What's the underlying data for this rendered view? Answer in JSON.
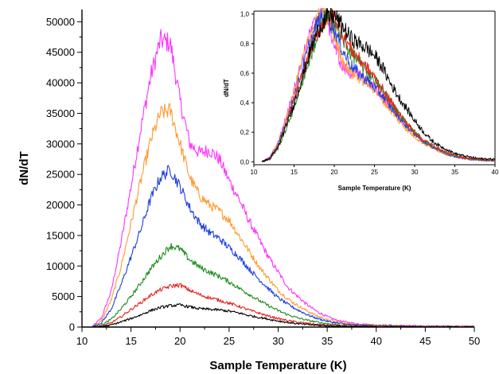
{
  "chart_data": [
    {
      "type": "line",
      "title": "",
      "xlabel": "Sample Temperature (K)",
      "ylabel": "dN/dT",
      "xlim": [
        10,
        50
      ],
      "ylim": [
        0,
        52000
      ],
      "xticks": [
        10,
        15,
        20,
        25,
        30,
        35,
        40,
        45,
        50
      ],
      "yticks": [
        0,
        5000,
        10000,
        15000,
        20000,
        25000,
        30000,
        35000,
        40000,
        45000,
        50000
      ],
      "grid": false,
      "legend": "none",
      "series": [
        {
          "color": "#ff33ff",
          "x": [
            11,
            12,
            13,
            14,
            15,
            16,
            17,
            18,
            19,
            20,
            21,
            22,
            23,
            24,
            25,
            26,
            27,
            28,
            29,
            30,
            31,
            32,
            33,
            34,
            35,
            36,
            37,
            38,
            40,
            42,
            45,
            50
          ],
          "y": [
            0,
            1500,
            6000,
            14000,
            23000,
            32500,
            41000,
            47000,
            46500,
            37000,
            30000,
            28500,
            29000,
            27500,
            24000,
            21000,
            17500,
            14500,
            11500,
            9000,
            6500,
            5000,
            3600,
            2500,
            1700,
            1100,
            800,
            550,
            350,
            250,
            150,
            100
          ]
        },
        {
          "color": "#ff9a33",
          "x": [
            11,
            12,
            13,
            14,
            15,
            16,
            17,
            18,
            19,
            20,
            21,
            22,
            23,
            24,
            25,
            26,
            27,
            28,
            29,
            30,
            31,
            32,
            33,
            34,
            35,
            36,
            37,
            38,
            40,
            42,
            45,
            50
          ],
          "y": [
            0,
            1000,
            4500,
            10000,
            17000,
            24000,
            30500,
            35000,
            35500,
            30000,
            24500,
            21500,
            20000,
            19000,
            17500,
            15000,
            12500,
            10000,
            8000,
            6000,
            4600,
            3500,
            2600,
            1800,
            1200,
            850,
            600,
            420,
            280,
            200,
            130,
            80
          ]
        },
        {
          "color": "#1f3fe0",
          "x": [
            11,
            12,
            13,
            14,
            15,
            16,
            17,
            18,
            19,
            20,
            21,
            22,
            23,
            24,
            25,
            26,
            27,
            28,
            29,
            30,
            31,
            32,
            33,
            34,
            35,
            36,
            37,
            38,
            40,
            42,
            45,
            50
          ],
          "y": [
            0,
            700,
            3000,
            7000,
            11500,
            16000,
            21000,
            24500,
            25800,
            23000,
            19500,
            17000,
            15500,
            14500,
            13000,
            11500,
            9600,
            7900,
            6300,
            4800,
            3700,
            2800,
            2000,
            1400,
            950,
            650,
            450,
            320,
            220,
            160,
            100,
            60
          ]
        },
        {
          "color": "#1a8a1a",
          "x": [
            11,
            12,
            13,
            14,
            15,
            16,
            17,
            18,
            19,
            20,
            21,
            22,
            23,
            24,
            25,
            26,
            27,
            28,
            29,
            30,
            31,
            32,
            33,
            34,
            35,
            36,
            37,
            38,
            40,
            42,
            45,
            50
          ],
          "y": [
            0,
            300,
            1300,
            3000,
            5000,
            7200,
            9500,
            11500,
            13300,
            12800,
            11000,
            9800,
            9000,
            8300,
            7400,
            6400,
            5400,
            4400,
            3500,
            2700,
            2000,
            1500,
            1100,
            800,
            550,
            400,
            280,
            200,
            140,
            100,
            60,
            40
          ]
        },
        {
          "color": "#e8221a",
          "x": [
            11,
            12,
            13,
            14,
            15,
            16,
            17,
            18,
            19,
            20,
            21,
            22,
            23,
            24,
            25,
            26,
            27,
            28,
            29,
            30,
            31,
            32,
            33,
            34,
            35,
            36,
            37,
            38,
            40,
            42,
            45,
            50
          ],
          "y": [
            0,
            150,
            700,
            1700,
            2900,
            4000,
            5200,
            6100,
            6700,
            6900,
            6000,
            5300,
            4800,
            4400,
            3900,
            3400,
            2800,
            2300,
            1800,
            1400,
            1050,
            800,
            600,
            420,
            300,
            220,
            160,
            120,
            80,
            60,
            40,
            30
          ]
        },
        {
          "color": "#000000",
          "x": [
            11,
            12,
            13,
            14,
            15,
            16,
            17,
            18,
            19,
            20,
            21,
            22,
            23,
            24,
            25,
            26,
            27,
            28,
            29,
            30,
            31,
            32,
            33,
            34,
            35,
            36,
            37,
            38,
            40,
            42,
            45,
            50
          ],
          "y": [
            0,
            80,
            350,
            850,
            1400,
            2000,
            2700,
            3200,
            3500,
            3600,
            3300,
            3000,
            2900,
            2800,
            2600,
            2300,
            1900,
            1600,
            1300,
            1000,
            750,
            550,
            400,
            300,
            200,
            150,
            110,
            80,
            60,
            40,
            30,
            20
          ]
        }
      ]
    },
    {
      "type": "line",
      "title": "",
      "xlabel": "Sample Temperature (K)",
      "ylabel": "dN/dT",
      "xlim": [
        10,
        40
      ],
      "ylim": [
        -0.02,
        1.02
      ],
      "xticks": [
        10,
        15,
        20,
        25,
        30,
        35,
        40
      ],
      "xtick_labels": [
        "10",
        "15",
        "20",
        "25",
        "30",
        "35",
        "40"
      ],
      "yticks": [
        0.0,
        0.2,
        0.4,
        0.6,
        0.8,
        1.0
      ],
      "ytick_labels": [
        "0,0",
        "0,2",
        "0,4",
        "0,6",
        "0,8",
        "1,0"
      ],
      "grid": false,
      "legend": "none",
      "series": [
        {
          "color": "#ff33ff",
          "x": [
            11,
            12,
            13,
            14,
            15,
            16,
            17,
            18,
            19,
            20,
            21,
            22,
            23,
            24,
            25,
            26,
            27,
            28,
            29,
            30,
            31,
            32,
            33,
            34,
            35,
            36,
            37,
            38,
            40
          ],
          "y": [
            0,
            0.03,
            0.13,
            0.3,
            0.49,
            0.69,
            0.87,
            0.99,
            0.99,
            0.79,
            0.64,
            0.6,
            0.6,
            0.55,
            0.5,
            0.44,
            0.37,
            0.3,
            0.24,
            0.19,
            0.14,
            0.11,
            0.08,
            0.055,
            0.037,
            0.024,
            0.017,
            0.012,
            0.007
          ]
        },
        {
          "color": "#ff9a33",
          "x": [
            11,
            12,
            13,
            14,
            15,
            16,
            17,
            18,
            19,
            20,
            21,
            22,
            23,
            24,
            25,
            26,
            27,
            28,
            29,
            30,
            31,
            32,
            33,
            34,
            35,
            36,
            37,
            38,
            40
          ],
          "y": [
            0,
            0.03,
            0.13,
            0.28,
            0.48,
            0.68,
            0.86,
            0.98,
            0.99,
            0.85,
            0.69,
            0.61,
            0.57,
            0.54,
            0.49,
            0.42,
            0.35,
            0.28,
            0.22,
            0.17,
            0.13,
            0.1,
            0.073,
            0.05,
            0.034,
            0.024,
            0.017,
            0.012,
            0.008
          ]
        },
        {
          "color": "#1f3fe0",
          "x": [
            11,
            12,
            13,
            14,
            15,
            16,
            17,
            18,
            19,
            20,
            21,
            22,
            23,
            24,
            25,
            26,
            27,
            28,
            29,
            30,
            31,
            32,
            33,
            34,
            35,
            36,
            37,
            38,
            40
          ],
          "y": [
            0,
            0.03,
            0.11,
            0.27,
            0.44,
            0.62,
            0.81,
            0.95,
            0.99,
            0.9,
            0.76,
            0.66,
            0.6,
            0.56,
            0.5,
            0.45,
            0.37,
            0.31,
            0.24,
            0.19,
            0.14,
            0.11,
            0.078,
            0.054,
            0.037,
            0.025,
            0.017,
            0.012,
            0.008
          ]
        },
        {
          "color": "#1a8a1a",
          "x": [
            11,
            12,
            13,
            14,
            15,
            16,
            17,
            18,
            19,
            20,
            21,
            22,
            23,
            24,
            25,
            26,
            27,
            28,
            29,
            30,
            31,
            32,
            33,
            34,
            35,
            36,
            37,
            38,
            40
          ],
          "y": [
            0,
            0.02,
            0.09,
            0.22,
            0.37,
            0.54,
            0.71,
            0.86,
            0.99,
            0.96,
            0.83,
            0.74,
            0.68,
            0.62,
            0.56,
            0.48,
            0.41,
            0.33,
            0.26,
            0.2,
            0.15,
            0.11,
            0.083,
            0.06,
            0.041,
            0.03,
            0.021,
            0.015,
            0.01
          ]
        },
        {
          "color": "#e8221a",
          "x": [
            11,
            12,
            13,
            14,
            15,
            16,
            17,
            18,
            19,
            20,
            21,
            22,
            23,
            24,
            25,
            26,
            27,
            28,
            29,
            30,
            31,
            32,
            33,
            34,
            35,
            36,
            37,
            38,
            40
          ],
          "y": [
            0,
            0.02,
            0.1,
            0.25,
            0.42,
            0.58,
            0.75,
            0.88,
            0.97,
            0.99,
            0.87,
            0.77,
            0.7,
            0.64,
            0.57,
            0.49,
            0.41,
            0.33,
            0.26,
            0.2,
            0.15,
            0.12,
            0.087,
            0.061,
            0.043,
            0.032,
            0.023,
            0.017,
            0.012
          ]
        },
        {
          "color": "#000000",
          "x": [
            11,
            12,
            13,
            14,
            15,
            16,
            17,
            18,
            19,
            20,
            21,
            22,
            23,
            24,
            25,
            26,
            27,
            28,
            29,
            30,
            31,
            32,
            33,
            34,
            35,
            36,
            37,
            38,
            40
          ],
          "y": [
            0,
            0.02,
            0.1,
            0.24,
            0.39,
            0.56,
            0.75,
            0.89,
            0.97,
            0.99,
            0.92,
            0.84,
            0.8,
            0.77,
            0.72,
            0.64,
            0.53,
            0.44,
            0.36,
            0.28,
            0.21,
            0.15,
            0.11,
            0.083,
            0.056,
            0.042,
            0.031,
            0.022,
            0.017
          ]
        }
      ]
    }
  ]
}
